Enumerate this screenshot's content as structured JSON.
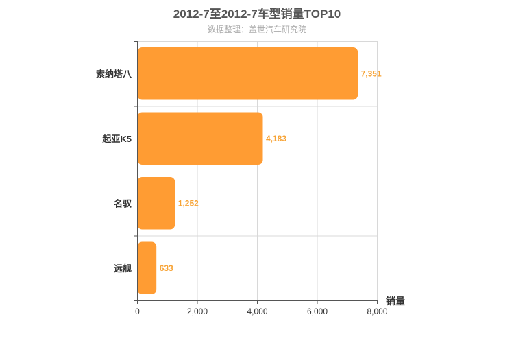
{
  "chart_data": {
    "type": "bar",
    "orientation": "horizontal",
    "title": "2012-7至2012-7车型销量TOP10",
    "subtitle": "数据整理：盖世汽车研究院",
    "categories": [
      "索纳塔八",
      "起亚K5",
      "名驭",
      "远舰"
    ],
    "values": [
      7351,
      4183,
      1252,
      633
    ],
    "value_labels": [
      "7,351",
      "4,183",
      "1,252",
      "633"
    ],
    "xlabel": "销量",
    "xlim": [
      0,
      8000
    ],
    "xticks": [
      0,
      2000,
      4000,
      6000,
      8000
    ],
    "xtick_labels": [
      "0",
      "2,000",
      "4,000",
      "6,000",
      "8,000"
    ],
    "grid": true,
    "bar_color": "#ff9c33",
    "label_color": "#f7a335"
  }
}
